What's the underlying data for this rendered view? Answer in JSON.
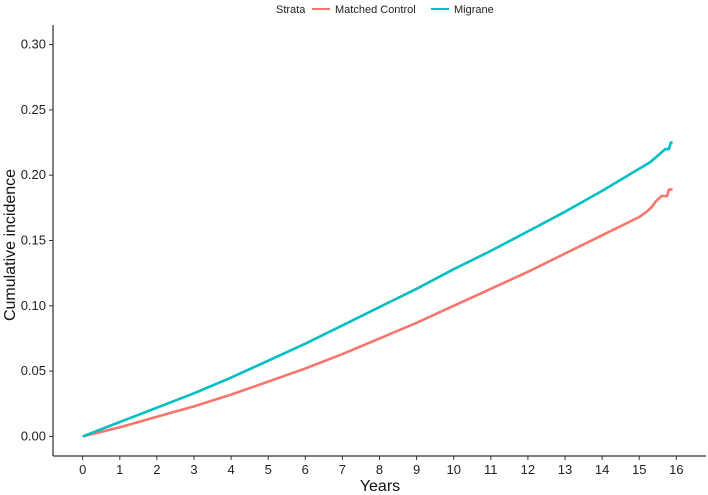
{
  "chart_data": {
    "type": "line",
    "title": "",
    "xlabel": "Years",
    "ylabel": "Cumulative incidence",
    "xlim": [
      -0.8,
      16.8
    ],
    "ylim": [
      -0.015,
      0.315
    ],
    "x_ticks": [
      0,
      1,
      2,
      3,
      4,
      5,
      6,
      7,
      8,
      9,
      10,
      11,
      12,
      13,
      14,
      15,
      16
    ],
    "y_ticks": [
      0.0,
      0.05,
      0.1,
      0.15,
      0.2,
      0.25,
      0.3
    ],
    "y_tick_labels": [
      "0.00",
      "0.05",
      "0.10",
      "0.15",
      "0.20",
      "0.25",
      "0.30"
    ],
    "grid": false,
    "legend": {
      "title": "Strata",
      "placement": "top",
      "entries": [
        "Matched Control",
        "Migrane"
      ]
    },
    "series": [
      {
        "name": "Matched Control",
        "color": "#F8766D",
        "x": [
          0,
          1,
          2,
          3,
          4,
          5,
          6,
          7,
          8,
          9,
          10,
          11,
          12,
          13,
          14,
          15,
          15.2,
          15.35,
          15.45,
          15.6,
          15.75,
          15.8,
          15.9
        ],
        "y": [
          0.0,
          0.007,
          0.015,
          0.023,
          0.032,
          0.042,
          0.052,
          0.063,
          0.075,
          0.087,
          0.1,
          0.113,
          0.126,
          0.14,
          0.154,
          0.168,
          0.172,
          0.176,
          0.18,
          0.184,
          0.184,
          0.189,
          0.189
        ]
      },
      {
        "name": "Migrane",
        "color": "#00BFC4",
        "x": [
          0,
          1,
          2,
          3,
          4,
          5,
          6,
          7,
          8,
          9,
          10,
          11,
          12,
          13,
          14,
          15,
          15.3,
          15.5,
          15.7,
          15.8,
          15.85,
          15.9
        ],
        "y": [
          0.0,
          0.011,
          0.022,
          0.033,
          0.045,
          0.058,
          0.071,
          0.085,
          0.099,
          0.113,
          0.128,
          0.142,
          0.157,
          0.172,
          0.188,
          0.205,
          0.21,
          0.215,
          0.22,
          0.22,
          0.225,
          0.225
        ]
      }
    ]
  }
}
